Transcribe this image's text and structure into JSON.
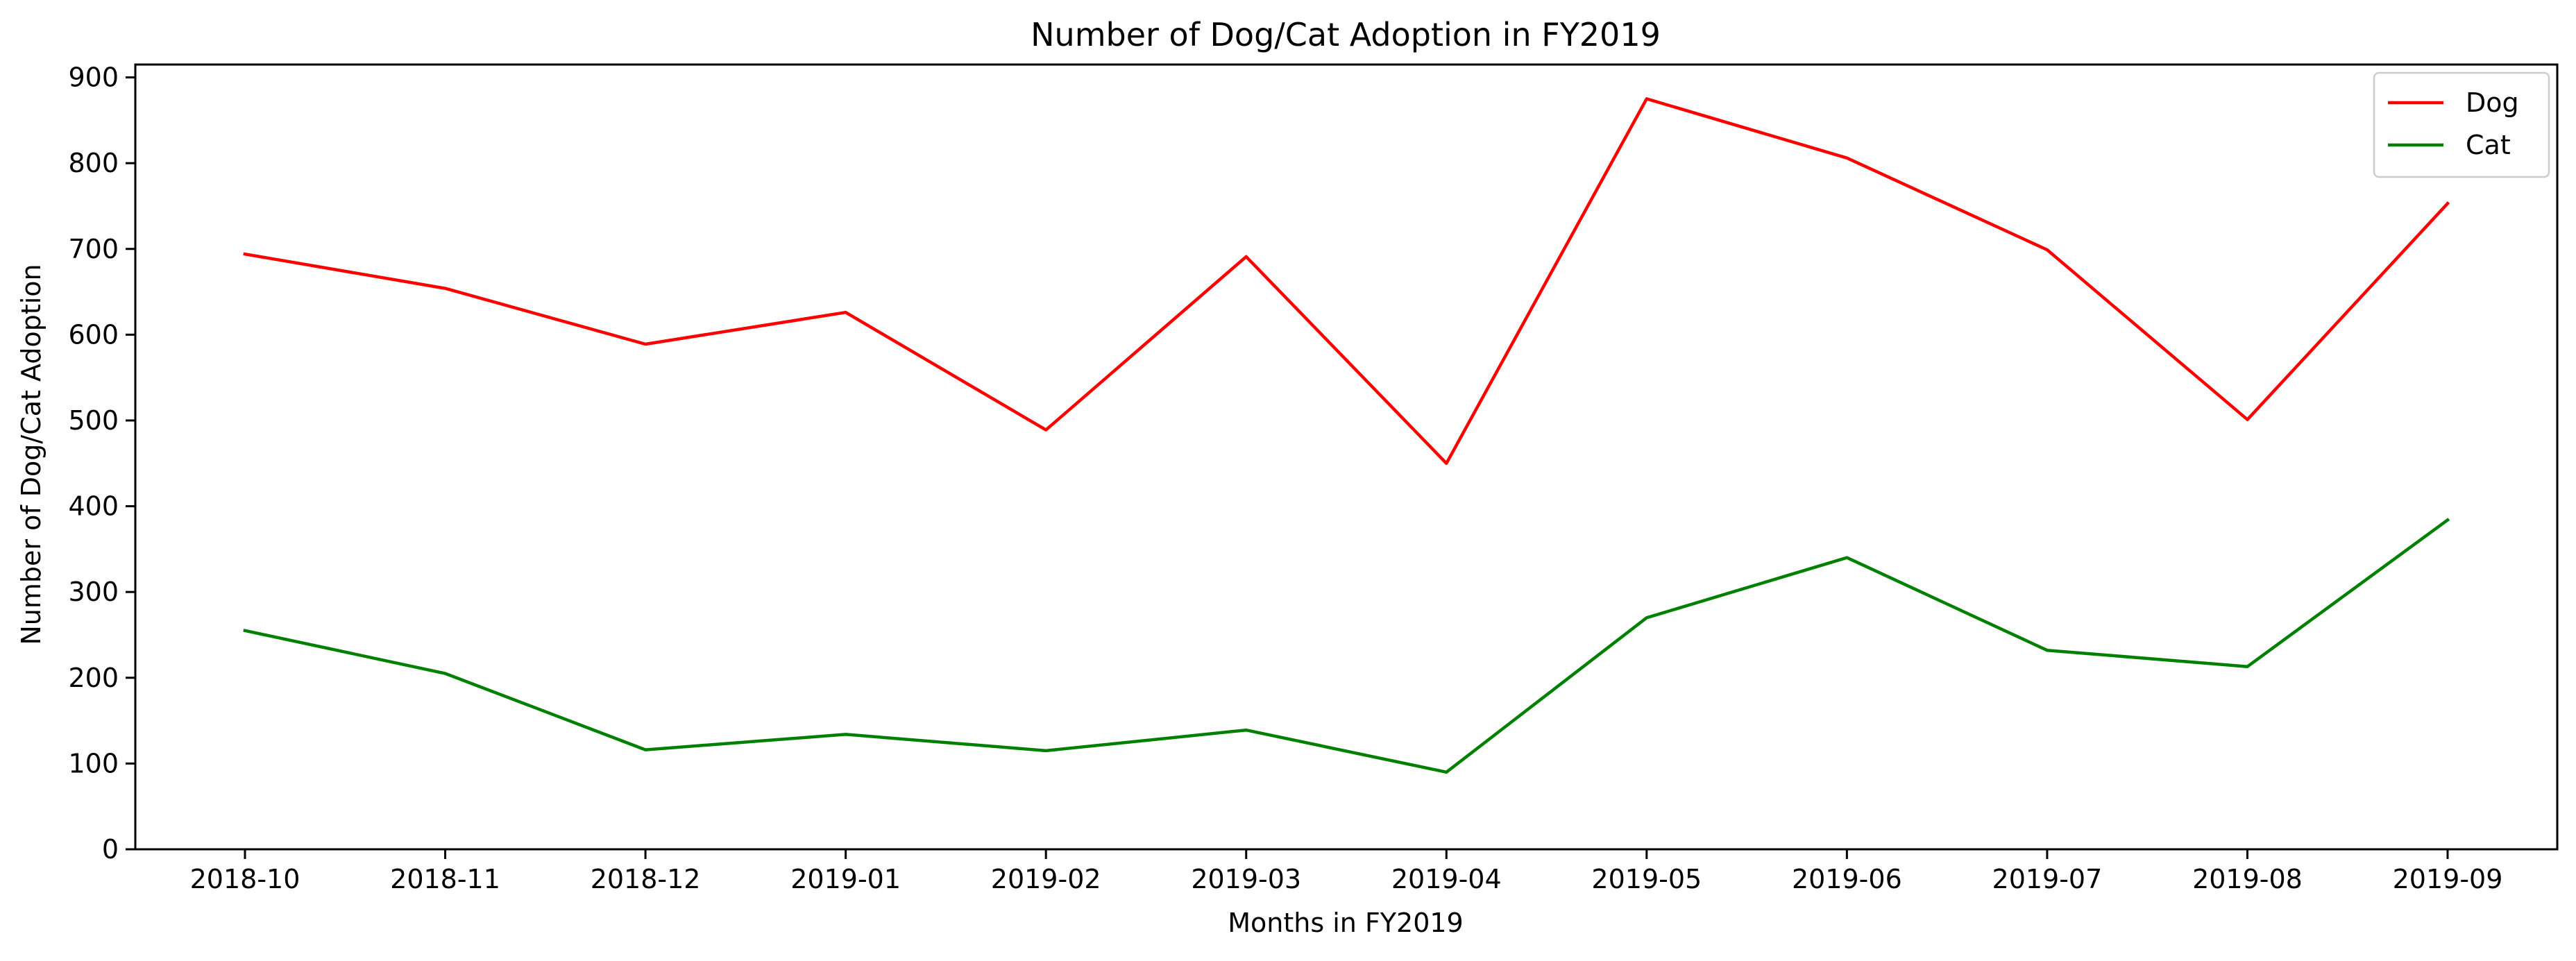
{
  "chart_data": {
    "type": "line",
    "title": "Number of Dog/Cat Adoption in FY2019",
    "xlabel": "Months in FY2019",
    "ylabel": "Number of Dog/Cat Adoption",
    "categories": [
      "2018-10",
      "2018-11",
      "2018-12",
      "2019-01",
      "2019-02",
      "2019-03",
      "2019-04",
      "2019-05",
      "2019-06",
      "2019-07",
      "2019-08",
      "2019-09"
    ],
    "ylim": [
      0,
      915
    ],
    "yticks": [
      0,
      100,
      200,
      300,
      400,
      500,
      600,
      700,
      800,
      900
    ],
    "grid": false,
    "legend_position": "top-right",
    "series": [
      {
        "name": "Dog",
        "color": "#ff0000",
        "values": [
          694,
          654,
          589,
          626,
          489,
          691,
          450,
          875,
          806,
          699,
          501,
          753
        ]
      },
      {
        "name": "Cat",
        "color": "#008000",
        "values": [
          255,
          205,
          116,
          134,
          115,
          139,
          90,
          270,
          340,
          232,
          213,
          384
        ]
      }
    ]
  }
}
